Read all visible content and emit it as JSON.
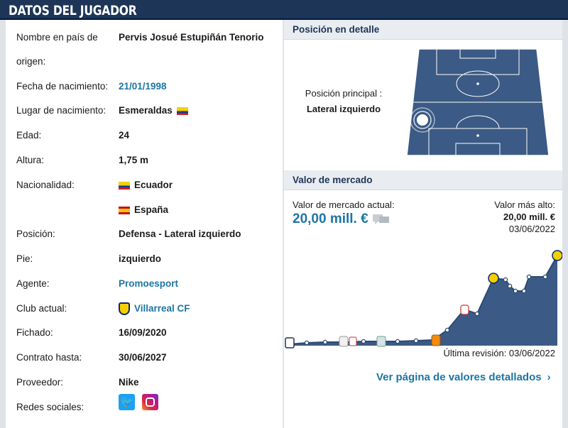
{
  "header": {
    "title": "DATOS DEL JUGADOR"
  },
  "details": [
    {
      "label": "Nombre en país de origen:",
      "value": "Pervis Josué Estupiñán Tenorio"
    },
    {
      "label": "Fecha de nacimiento:",
      "value": "21/01/1998",
      "link": true
    },
    {
      "label": "Lugar de nacimiento:",
      "value": "Esmeraldas",
      "flag": "ecuador-flag"
    },
    {
      "label": "Edad:",
      "value": "24"
    },
    {
      "label": "Altura:",
      "value": "1,75 m"
    },
    {
      "label": "Nacionalidad:",
      "value": "Ecuador",
      "flag": "ecuador-flag"
    },
    {
      "label": "",
      "value": "España",
      "flag": "spain-flag"
    },
    {
      "label": "Posición:",
      "value": "Defensa - Lateral izquierdo"
    },
    {
      "label": "Pie:",
      "value": "izquierdo"
    },
    {
      "label": "Agente:",
      "value": "Promoesport",
      "link": true
    },
    {
      "label": "Club actual:",
      "value": "Villarreal CF",
      "link": true,
      "icon": "villarreal-crest-icon"
    },
    {
      "label": "Fichado:",
      "value": "16/09/2020"
    },
    {
      "label": "Contrato hasta:",
      "value": "30/06/2027"
    },
    {
      "label": "Proveedor:",
      "value": "Nike"
    },
    {
      "label": "Redes sociales:",
      "value": "",
      "icons": [
        "twitter-icon",
        "instagram-icon"
      ]
    }
  ],
  "position": {
    "heading": "Posición en detalle",
    "main_label": "Posición principal :",
    "main_value": "Lateral izquierdo"
  },
  "market": {
    "heading": "Valor de mercado",
    "current_label": "Valor de mercado actual:",
    "current_value": "20,00 mill. €",
    "highest_label": "Valor más alto:",
    "highest_value": "20,00 mill. €",
    "highest_date": "03/06/2022",
    "last_review": "Última revisión: 03/06/2022",
    "detail_link": "Ver página de valores detallados"
  },
  "colors": {
    "header": "#1d3557",
    "link": "#1d75a3",
    "chart_fill": "#3b5a85"
  }
}
